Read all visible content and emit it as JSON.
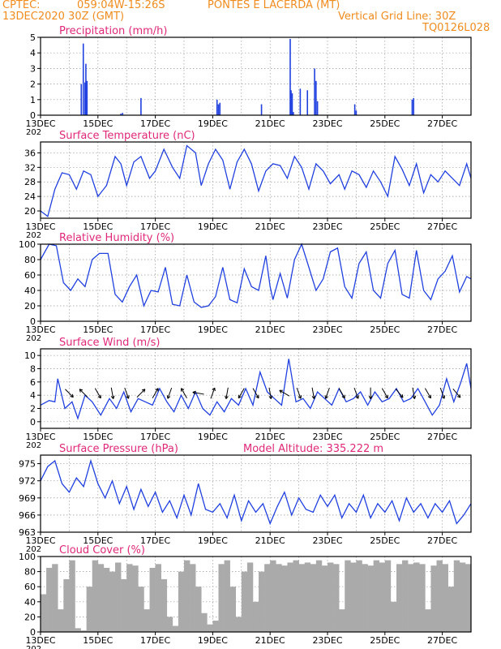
{
  "header": {
    "source": "CPTEC:",
    "coords": "059:04W-15:26S",
    "location": "PONTES E LACERDA (MT)",
    "run": "13DEC2020 30Z (GMT)",
    "grid_note": "Vertical Grid Line: 30Z",
    "code": "TQ0126L028"
  },
  "colors": {
    "header": "#f08c1e",
    "title": "#e0287a",
    "line": "#2040e0",
    "cloud": "#aaaaaa",
    "grid": "#9a9a9a"
  },
  "x_axis": {
    "labels": [
      "13DEC",
      "15DEC",
      "17DEC",
      "19DEC",
      "21DEC",
      "23DEC",
      "25DEC",
      "27DEC"
    ],
    "label_positions": [
      0,
      2,
      4,
      6,
      8,
      10,
      12,
      14
    ],
    "range_days": [
      0,
      15
    ],
    "clipped_year_label": "202"
  },
  "chart_data": [
    {
      "type": "bar",
      "title": "Precipitation (mm/h)",
      "ylim": [
        0,
        5
      ],
      "yticks": [
        "0",
        "1",
        "2",
        "3",
        "4",
        "5"
      ],
      "x": [
        1.42,
        1.49,
        1.55,
        1.58,
        1.62,
        2.8,
        2.86,
        3.5,
        6.15,
        6.2,
        6.25,
        7.7,
        8.7,
        8.73,
        8.77,
        8.81,
        9.05,
        9.3,
        9.55,
        9.6,
        9.65,
        10.95,
        11.0,
        12.95,
        13.0
      ],
      "values": [
        2.0,
        4.6,
        2.1,
        3.3,
        2.2,
        0.1,
        0.15,
        1.1,
        1.0,
        0.7,
        0.8,
        0.7,
        4.9,
        1.6,
        1.4,
        0.2,
        1.7,
        1.6,
        3.0,
        2.2,
        0.9,
        0.7,
        0.3,
        1.0,
        1.1
      ]
    },
    {
      "type": "line",
      "title": "Surface Temperature (nC)",
      "ylim": [
        18,
        39
      ],
      "yticks": [
        "20",
        "24",
        "28",
        "32",
        "36"
      ],
      "ytick_values": [
        20,
        24,
        28,
        32,
        36
      ],
      "x": [
        0,
        0.25,
        0.5,
        0.75,
        1.0,
        1.25,
        1.5,
        1.75,
        2.0,
        2.3,
        2.6,
        2.8,
        3.0,
        3.25,
        3.5,
        3.8,
        4.0,
        4.3,
        4.6,
        4.85,
        5.1,
        5.4,
        5.6,
        5.85,
        6.1,
        6.35,
        6.6,
        6.85,
        7.1,
        7.35,
        7.6,
        7.85,
        8.1,
        8.35,
        8.6,
        8.85,
        9.1,
        9.35,
        9.6,
        9.85,
        10.1,
        10.4,
        10.6,
        10.85,
        11.1,
        11.35,
        11.6,
        11.85,
        12.1,
        12.35,
        12.6,
        12.85,
        13.1,
        13.35,
        13.6,
        13.85,
        14.1,
        14.35,
        14.6,
        14.85,
        15.0
      ],
      "values": [
        20,
        18.5,
        26,
        30.5,
        30,
        26,
        31,
        30,
        24,
        27,
        35,
        33,
        27,
        33.5,
        35,
        29,
        31,
        37,
        32,
        29,
        38,
        36,
        27,
        33,
        37,
        34,
        26,
        33.5,
        37,
        33,
        25.5,
        31,
        33,
        32.5,
        29,
        35,
        32,
        26,
        33,
        31,
        27.5,
        30,
        26,
        31,
        30,
        26.5,
        31,
        28,
        24,
        35,
        31.5,
        27,
        33,
        25,
        30,
        28,
        31,
        29,
        27,
        33,
        29
      ]
    },
    {
      "type": "line",
      "title": "Relative Humidity (%)",
      "ylim": [
        0,
        100
      ],
      "yticks": [
        "0",
        "20",
        "40",
        "60",
        "80",
        "100"
      ],
      "ytick_values": [
        0,
        20,
        40,
        60,
        80,
        100
      ],
      "x": [
        0,
        0.3,
        0.55,
        0.8,
        1.05,
        1.3,
        1.55,
        1.8,
        2.05,
        2.35,
        2.6,
        2.85,
        3.1,
        3.35,
        3.6,
        3.85,
        4.1,
        4.35,
        4.6,
        4.85,
        5.1,
        5.35,
        5.6,
        5.85,
        6.1,
        6.35,
        6.6,
        6.85,
        7.1,
        7.35,
        7.6,
        7.85,
        8.0,
        8.1,
        8.35,
        8.6,
        8.85,
        9.1,
        9.35,
        9.6,
        9.85,
        10.1,
        10.35,
        10.6,
        10.85,
        11.1,
        11.35,
        11.6,
        11.85,
        12.1,
        12.35,
        12.6,
        12.85,
        13.1,
        13.35,
        13.6,
        13.85,
        14.1,
        14.35,
        14.6,
        14.85,
        15.0
      ],
      "values": [
        80,
        100,
        98,
        50,
        40,
        55,
        45,
        80,
        88,
        88,
        35,
        25,
        45,
        60,
        20,
        40,
        38,
        70,
        22,
        20,
        60,
        25,
        18,
        20,
        32,
        70,
        28,
        24,
        68,
        45,
        40,
        85,
        45,
        28,
        62,
        30,
        80,
        100,
        70,
        40,
        55,
        90,
        95,
        45,
        30,
        75,
        90,
        40,
        30,
        75,
        92,
        35,
        30,
        92,
        40,
        28,
        55,
        65,
        85,
        38,
        58,
        55
      ]
    },
    {
      "type": "line",
      "title": "Surface Wind (m/s)",
      "ylim": [
        -1,
        11
      ],
      "yticks": [
        "0",
        "2",
        "4",
        "6",
        "8",
        "10"
      ],
      "ytick_values": [
        0,
        2,
        4,
        6,
        8,
        10
      ],
      "x": [
        0,
        0.3,
        0.5,
        0.6,
        0.85,
        1.1,
        1.3,
        1.55,
        1.8,
        2.1,
        2.4,
        2.65,
        2.9,
        3.15,
        3.4,
        3.65,
        3.9,
        4.15,
        4.4,
        4.65,
        4.9,
        5.15,
        5.4,
        5.65,
        5.9,
        6.15,
        6.4,
        6.65,
        6.9,
        7.15,
        7.4,
        7.65,
        7.9,
        8.15,
        8.4,
        8.65,
        8.9,
        9.15,
        9.4,
        9.65,
        9.9,
        10.15,
        10.4,
        10.65,
        10.9,
        11.15,
        11.4,
        11.65,
        11.9,
        12.15,
        12.4,
        12.65,
        12.9,
        13.15,
        13.4,
        13.65,
        13.9,
        14.15,
        14.4,
        14.65,
        14.85,
        15.0
      ],
      "values": [
        2.5,
        3.2,
        3.0,
        6.5,
        2.0,
        3.0,
        0.5,
        4.0,
        3.0,
        1.0,
        3.5,
        2.0,
        4.5,
        1.5,
        3.5,
        3.0,
        2.5,
        5.0,
        3.0,
        1.5,
        4.0,
        2.0,
        4.5,
        2.0,
        1.0,
        3.0,
        1.5,
        3.5,
        2.5,
        5.0,
        2.5,
        7.5,
        4.5,
        3.5,
        2.5,
        9.5,
        3.0,
        3.5,
        2.0,
        4.5,
        3.5,
        2.5,
        5.0,
        3.0,
        3.5,
        4.5,
        2.5,
        4.5,
        3.0,
        3.5,
        5.0,
        3.0,
        3.5,
        5.0,
        3.0,
        1.0,
        2.5,
        6.5,
        3.0,
        6.0,
        8.8,
        5.0
      ],
      "wind_arrow_x": [
        1.0,
        1.5,
        2.0,
        2.5,
        3.0,
        3.5,
        4.0,
        4.5,
        5.0,
        5.5,
        6.0,
        6.5,
        7.0,
        7.5,
        8.0,
        8.5,
        9.0,
        9.5,
        10.0,
        10.5,
        11.0,
        11.5,
        12.0,
        12.5,
        13.0,
        13.5,
        14.0,
        14.5
      ],
      "wind_arrow_deg": [
        135,
        315,
        150,
        170,
        160,
        45,
        30,
        200,
        330,
        280,
        20,
        190,
        210,
        150,
        170,
        300,
        160,
        170,
        200,
        150,
        160,
        180,
        150,
        140,
        170,
        150,
        160,
        140
      ]
    },
    {
      "type": "line",
      "title": "Surface Pressure (hPa)",
      "annotation": "Model Altitude: 335.222 m",
      "ylim": [
        963,
        976.5
      ],
      "yticks": [
        "963",
        "966",
        "969",
        "972",
        "975"
      ],
      "ytick_values": [
        963,
        966,
        969,
        972,
        975
      ],
      "x": [
        0,
        0.25,
        0.5,
        0.75,
        1.0,
        1.25,
        1.5,
        1.75,
        2.0,
        2.25,
        2.5,
        2.75,
        3.0,
        3.25,
        3.5,
        3.75,
        4.0,
        4.25,
        4.5,
        4.75,
        5.0,
        5.25,
        5.5,
        5.75,
        6.0,
        6.25,
        6.5,
        6.75,
        7.0,
        7.25,
        7.5,
        7.75,
        8.0,
        8.25,
        8.5,
        8.75,
        9.0,
        9.25,
        9.5,
        9.75,
        10.0,
        10.25,
        10.5,
        10.75,
        11.0,
        11.25,
        11.5,
        11.75,
        12.0,
        12.25,
        12.5,
        12.75,
        13.0,
        13.25,
        13.5,
        13.75,
        14.0,
        14.25,
        14.5,
        14.75,
        15.0
      ],
      "values": [
        972,
        974.5,
        975.5,
        971.5,
        970,
        972.5,
        971,
        975.5,
        971.5,
        969,
        972,
        968,
        971,
        967,
        970.5,
        967.5,
        970,
        966.5,
        968.5,
        965.5,
        969.5,
        966,
        971.5,
        967,
        966.5,
        968,
        965.5,
        969.5,
        965,
        968.5,
        966.5,
        968,
        964.5,
        967.5,
        970,
        966,
        969,
        967,
        966.5,
        969.5,
        967.5,
        969.5,
        965.5,
        968,
        966.5,
        969.5,
        965.5,
        968,
        966.5,
        968.5,
        965,
        969,
        966.5,
        968,
        965.5,
        968,
        966.5,
        968.5,
        964.5,
        966,
        968
      ]
    },
    {
      "type": "area",
      "title": "Cloud Cover (%)",
      "ylim": [
        0,
        100
      ],
      "yticks": [
        "0",
        "20",
        "40",
        "60",
        "80",
        "100"
      ],
      "ytick_values": [
        0,
        20,
        40,
        60,
        80,
        100
      ],
      "x": [
        0,
        0.2,
        0.4,
        0.6,
        0.8,
        1.0,
        1.2,
        1.4,
        1.6,
        1.8,
        2.0,
        2.2,
        2.4,
        2.6,
        2.8,
        3.0,
        3.2,
        3.4,
        3.6,
        3.8,
        4.0,
        4.2,
        4.4,
        4.6,
        4.8,
        5.0,
        5.2,
        5.4,
        5.6,
        5.8,
        6.0,
        6.2,
        6.4,
        6.6,
        6.8,
        7.0,
        7.2,
        7.4,
        7.6,
        7.8,
        8.0,
        8.2,
        8.4,
        8.6,
        8.8,
        9.0,
        9.2,
        9.4,
        9.6,
        9.8,
        10.0,
        10.2,
        10.4,
        10.6,
        10.8,
        11.0,
        11.2,
        11.4,
        11.6,
        11.8,
        12.0,
        12.2,
        12.4,
        12.6,
        12.8,
        13.0,
        13.2,
        13.4,
        13.6,
        13.8,
        14.0,
        14.2,
        14.4,
        14.6,
        14.8,
        15.0
      ],
      "values": [
        50,
        85,
        90,
        30,
        70,
        95,
        5,
        2,
        60,
        95,
        90,
        85,
        80,
        92,
        70,
        90,
        88,
        60,
        30,
        85,
        90,
        70,
        20,
        8,
        80,
        95,
        90,
        60,
        25,
        10,
        15,
        90,
        95,
        60,
        20,
        80,
        92,
        40,
        80,
        90,
        95,
        90,
        88,
        92,
        95,
        90,
        92,
        90,
        95,
        88,
        92,
        90,
        30,
        95,
        92,
        95,
        90,
        88,
        95,
        92,
        95,
        40,
        90,
        95,
        90,
        92,
        90,
        30,
        88,
        95,
        90,
        60,
        95,
        92,
        90,
        65
      ]
    }
  ]
}
